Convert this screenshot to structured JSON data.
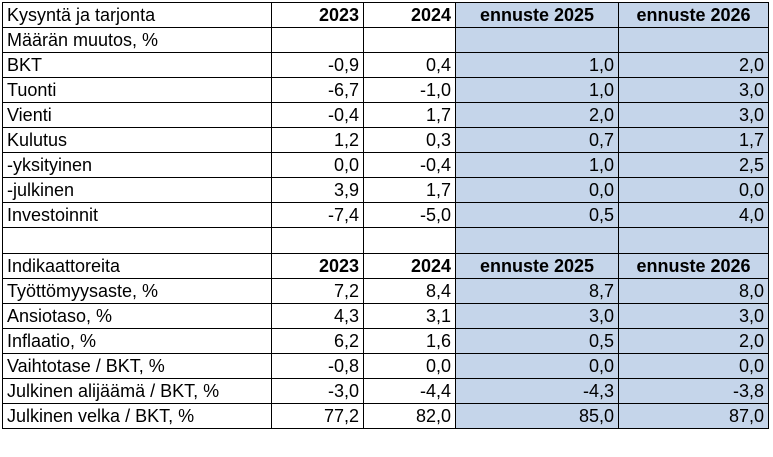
{
  "sections": [
    {
      "header": {
        "label": "Kysyntä ja tarjonta",
        "years": [
          "2023",
          "2024",
          "ennuste 2025",
          "ennuste 2026"
        ]
      },
      "subheader": "Määrän muutos, %",
      "rows": [
        {
          "label": "BKT",
          "values": [
            "-0,9",
            "0,4",
            "1,0",
            "2,0"
          ]
        },
        {
          "label": "Tuonti",
          "values": [
            "-6,7",
            "-1,0",
            "1,0",
            "3,0"
          ]
        },
        {
          "label": "Vienti",
          "values": [
            "-0,4",
            "1,7",
            "2,0",
            "3,0"
          ]
        },
        {
          "label": "Kulutus",
          "values": [
            "1,2",
            "0,3",
            "0,7",
            "1,7"
          ]
        },
        {
          "label": "-yksityinen",
          "values": [
            "0,0",
            "-0,4",
            "1,0",
            "2,5"
          ]
        },
        {
          "label": "-julkinen",
          "values": [
            "3,9",
            "1,7",
            "0,0",
            "0,0"
          ]
        },
        {
          "label": "Investoinnit",
          "values": [
            "-7,4",
            "-5,0",
            "0,5",
            "4,0"
          ]
        }
      ]
    },
    {
      "header": {
        "label": "Indikaattoreita",
        "years": [
          "2023",
          "2024",
          "ennuste 2025",
          "ennuste 2026"
        ]
      },
      "rows": [
        {
          "label": "Työttömyysaste, %",
          "values": [
            "7,2",
            "8,4",
            "8,7",
            "8,0"
          ]
        },
        {
          "label": "Ansiotaso, %",
          "values": [
            "4,3",
            "3,1",
            "3,0",
            "3,0"
          ]
        },
        {
          "label": "Inflaatio, %",
          "values": [
            "6,2",
            "1,6",
            "0,5",
            "2,0"
          ]
        },
        {
          "label": "Vaihtotase / BKT, %",
          "values": [
            "-0,8",
            "0,0",
            "0,0",
            "0,0"
          ]
        },
        {
          "label": "Julkinen alijäämä / BKT, %",
          "values": [
            "-3,0",
            "-4,4",
            "-4,3",
            "-3,8"
          ]
        },
        {
          "label": "Julkinen velka / BKT, %",
          "values": [
            "77,2",
            "82,0",
            "85,0",
            "87,0"
          ]
        }
      ]
    }
  ],
  "colors": {
    "forecast_fill": "#c5d5ea",
    "border": "#000000"
  }
}
